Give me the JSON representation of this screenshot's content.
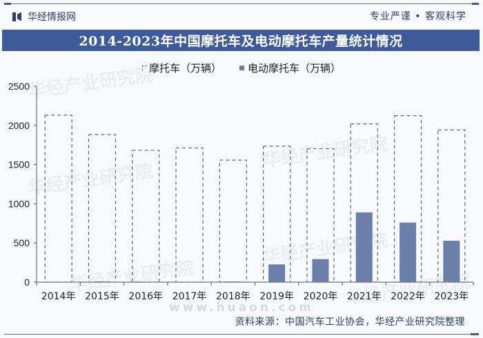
{
  "header": {
    "brand": "华经情报网",
    "slogan": "专业严谨 • 客观科学",
    "title": "2014-2023年中国摩托车及电动摩托车产量统计情况"
  },
  "legend": {
    "series1": "摩托车（万辆）",
    "series2": "电动摩托车（万辆）"
  },
  "footer": {
    "source": "资料来源：中国汽车工业协会，华经产业研究院整理",
    "watermark_url": "www.huaon.com",
    "watermark_text": "华经产业研究院"
  },
  "colors": {
    "title_bg": "#3d5a99",
    "electric_bar": "#6a80aa",
    "dashed_outline": "#666666"
  },
  "chart_data": {
    "type": "bar",
    "title": "2014-2023年中国摩托车及电动摩托车产量统计情况",
    "xlabel": "",
    "ylabel": "",
    "ylim": [
      0,
      2500
    ],
    "yticks": [
      0,
      500,
      1000,
      1500,
      2000,
      2500
    ],
    "grid": false,
    "legend_position": "top",
    "categories": [
      "2014年",
      "2015年",
      "2016年",
      "2017年",
      "2018年",
      "2019年",
      "2020年",
      "2021年",
      "2022年",
      "2023年"
    ],
    "series": [
      {
        "name": "摩托车（万辆）",
        "style": "dashed-outline",
        "values": [
          2130,
          1883,
          1682,
          1712,
          1557,
          1734,
          1703,
          2019,
          2125,
          1942
        ]
      },
      {
        "name": "电动摩托车（万辆）",
        "style": "solid",
        "values": [
          0,
          5,
          0,
          0,
          6,
          226,
          294,
          890,
          760,
          528
        ]
      }
    ]
  }
}
